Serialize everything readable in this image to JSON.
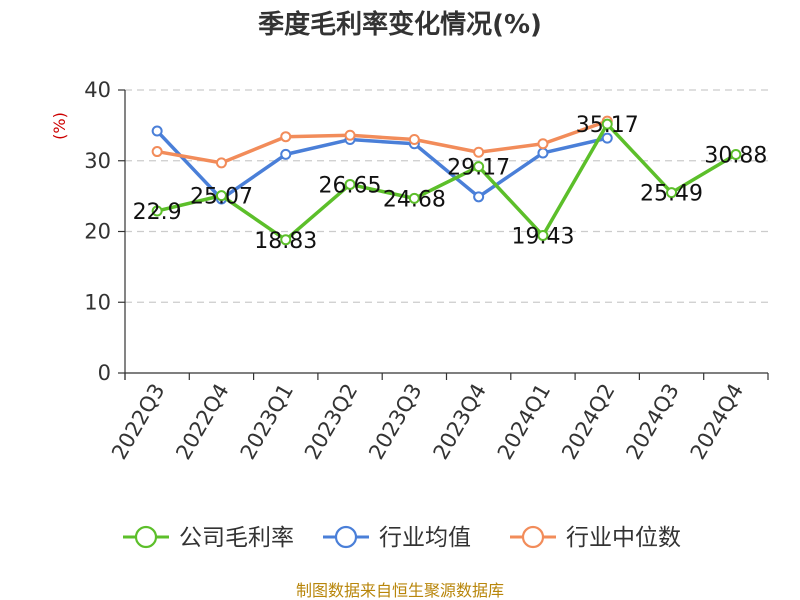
{
  "chart_data": {
    "type": "line",
    "title": "季度毛利率变化情况(%)",
    "y_unit": "(%)",
    "ylim": [
      0,
      40
    ],
    "yticks": [
      0,
      10,
      20,
      30,
      40
    ],
    "grid": true,
    "legend_position": "bottom",
    "categories": [
      "2022Q3",
      "2022Q4",
      "2023Q1",
      "2023Q2",
      "2023Q3",
      "2023Q4",
      "2024Q1",
      "2024Q2",
      "2024Q3",
      "2024Q4"
    ],
    "series": [
      {
        "name": "公司毛利率",
        "color": "#5cbf2a",
        "show_labels": true,
        "values": [
          22.9,
          25.07,
          18.83,
          26.65,
          24.68,
          29.17,
          19.43,
          35.17,
          25.49,
          30.88
        ],
        "labels": [
          "22.9",
          "25.07",
          "18.83",
          "26.65",
          "24.68",
          "29.17",
          "19.43",
          "35.17",
          "25.49",
          "30.88"
        ]
      },
      {
        "name": "行业均值",
        "color": "#4a7fd8",
        "show_labels": false,
        "values": [
          34.2,
          24.6,
          30.9,
          33.0,
          32.4,
          24.9,
          31.1,
          33.2,
          null,
          null
        ]
      },
      {
        "name": "行业中位数",
        "color": "#f28c5a",
        "show_labels": false,
        "values": [
          31.3,
          29.7,
          33.4,
          33.6,
          33.0,
          31.2,
          32.4,
          35.6,
          null,
          null
        ]
      }
    ]
  },
  "source": "制图数据来自恒生聚源数据库"
}
